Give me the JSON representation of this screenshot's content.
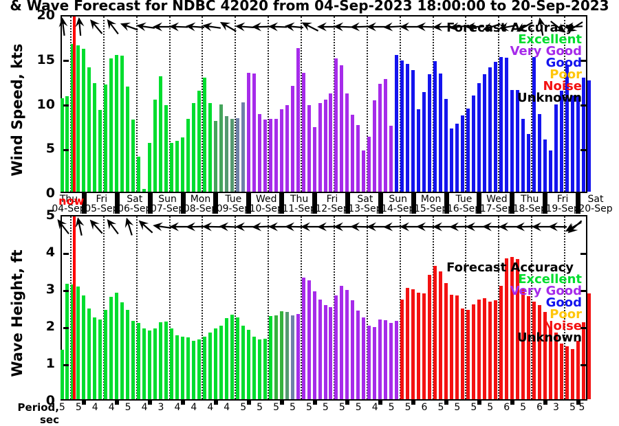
{
  "title": "& Wave Forecast for NDBC 42020 from 04-Sep-2023 18:00:00 to 20-Sep-2023",
  "now_marker": {
    "label": "now",
    "color": "#FF0000"
  },
  "legend": {
    "title": "Forecast Accuracy",
    "items": [
      {
        "label": "Excellent",
        "color": "#00DD2E"
      },
      {
        "label": "Very Good",
        "color": "#A62BEA"
      },
      {
        "label": "Good",
        "color": "#1414EE"
      },
      {
        "label": "Poor",
        "color": "#FFC60A"
      },
      {
        "label": "Noise",
        "color": "#F31111"
      },
      {
        "label": "Unknown",
        "color": "#000000"
      }
    ]
  },
  "x_axis": {
    "day_labels": [
      {
        "day": "Thu",
        "date": "04-Sep"
      },
      {
        "day": "Fri",
        "date": "05-Sep"
      },
      {
        "day": "Sat",
        "date": "06-Sep"
      },
      {
        "day": "Sun",
        "date": "07-Sep"
      },
      {
        "day": "Mon",
        "date": "08-Sep"
      },
      {
        "day": "Tue",
        "date": "09-Sep"
      },
      {
        "day": "Wed",
        "date": "10-Sep"
      },
      {
        "day": "Thu",
        "date": "11-Sep"
      },
      {
        "day": "Fri",
        "date": "12-Sep"
      },
      {
        "day": "Sat",
        "date": "13-Sep"
      },
      {
        "day": "Sun",
        "date": "14-Sep"
      },
      {
        "day": "Mon",
        "date": "15-Sep"
      },
      {
        "day": "Tue",
        "date": "16-Sep"
      },
      {
        "day": "Wed",
        "date": "17-Sep"
      },
      {
        "day": "Thu",
        "date": "18-Sep"
      },
      {
        "day": "Fri",
        "date": "19-Sep"
      },
      {
        "day": "Sat",
        "date": "20-Sep"
      }
    ]
  },
  "period_row": {
    "label": "Period, sec",
    "values": [
      5,
      5,
      4,
      4,
      5,
      4,
      3,
      4,
      4,
      4,
      4,
      5,
      5,
      5,
      5,
      5,
      5,
      5,
      5,
      4,
      5,
      5,
      6,
      5,
      5,
      5,
      5,
      6,
      5,
      6,
      3,
      5,
      5
    ]
  },
  "chart_data": [
    {
      "type": "bar",
      "name": "wind-speed",
      "ylabel": "Wind Speed, kts",
      "ylim": [
        0,
        20
      ],
      "yticks": [
        0,
        5,
        10,
        15,
        20
      ],
      "grid": "vertical-dotted",
      "legend_position": "top-right",
      "values": [
        10.7,
        10.9,
        16.9,
        16.7,
        16.3,
        14.2,
        12.4,
        9.3,
        12.2,
        15.2,
        15.6,
        15.5,
        12.0,
        8.2,
        4.0,
        0.3,
        5.6,
        10.5,
        13.2,
        9.9,
        5.6,
        5.8,
        6.2,
        8.3,
        10.1,
        11.5,
        13.0,
        10.1,
        8.1,
        10.0,
        8.6,
        8.3,
        8.4,
        10.2,
        13.6,
        13.5,
        8.9,
        8.2,
        8.3,
        8.3,
        9.4,
        9.9,
        12.1,
        16.4,
        13.6,
        9.9,
        7.4,
        10.1,
        10.5,
        11.2,
        15.2,
        14.4,
        11.2,
        8.8,
        7.6,
        4.7,
        6.3,
        10.4,
        12.3,
        12.9,
        7.5,
        15.6,
        15.0,
        14.6,
        13.9,
        9.4,
        11.4,
        13.4,
        14.9,
        13.5,
        10.6,
        7.2,
        7.8,
        8.7,
        9.5,
        11.0,
        12.4,
        13.4,
        14.2,
        14.8,
        15.4,
        15.3,
        11.6,
        11.6,
        8.3,
        6.6,
        15.4,
        8.9,
        6.0,
        4.7,
        10.0,
        11.5,
        14.5,
        11.0,
        11.0,
        13.0,
        12.7
      ],
      "color_segments": [
        {
          "until": 28,
          "color": "#00DD2E",
          "accuracy": "Excellent"
        },
        {
          "until": 30,
          "color": "#45A45C",
          "accuracy": "transition"
        },
        {
          "until": 32,
          "color": "#54996F",
          "accuracy": "transition"
        },
        {
          "until": 34,
          "color": "#6F80A8",
          "accuracy": "transition"
        },
        {
          "until": 61,
          "color": "#A62BEA",
          "accuracy": "Very Good"
        },
        {
          "until": 97,
          "color": "#1414EE",
          "accuracy": "Good"
        }
      ],
      "arrow_directions_deg": [
        97,
        95,
        130,
        127,
        160,
        172,
        180,
        178,
        176,
        172,
        150,
        176,
        181,
        178,
        175,
        153,
        180,
        178,
        182,
        180,
        183,
        180,
        178,
        182,
        187,
        182,
        198,
        191,
        210,
        100,
        322,
        183,
        212
      ]
    },
    {
      "type": "bar",
      "name": "wave-height",
      "ylabel": "Wave Height, ft",
      "ylim": [
        0,
        5
      ],
      "yticks": [
        0,
        1,
        2,
        3,
        4,
        5
      ],
      "grid": "vertical-dotted",
      "legend_position": "top-right",
      "values": [
        1.35,
        3.15,
        3.13,
        3.08,
        2.84,
        2.48,
        2.23,
        2.19,
        2.45,
        2.81,
        2.92,
        2.65,
        2.45,
        2.15,
        2.09,
        1.94,
        1.88,
        1.94,
        2.1,
        2.12,
        1.93,
        1.75,
        1.72,
        1.69,
        1.6,
        1.63,
        1.72,
        1.82,
        1.94,
        2.02,
        2.21,
        2.31,
        2.23,
        2.01,
        1.89,
        1.72,
        1.63,
        1.66,
        2.27,
        2.29,
        2.4,
        2.38,
        2.29,
        2.33,
        3.33,
        3.26,
        2.95,
        2.73,
        2.57,
        2.51,
        2.83,
        3.11,
        2.98,
        2.7,
        2.43,
        2.23,
        2.01,
        1.98,
        2.19,
        2.16,
        2.08,
        2.15,
        2.73,
        3.04,
        3.01,
        2.92,
        2.89,
        3.4,
        3.64,
        3.49,
        3.17,
        2.85,
        2.83,
        2.48,
        2.45,
        2.6,
        2.73,
        2.76,
        2.67,
        2.7,
        3.11,
        3.86,
        3.89,
        3.83,
        3.01,
        2.82,
        2.67,
        2.57,
        2.38,
        1.98,
        1.82,
        1.53,
        1.44,
        1.38,
        1.6,
        2.1,
        2.9
      ],
      "color_segments": [
        {
          "until": 39,
          "color": "#00DD2E",
          "accuracy": "Excellent"
        },
        {
          "until": 41,
          "color": "#35B23C",
          "accuracy": "transition"
        },
        {
          "until": 42,
          "color": "#54996F",
          "accuracy": "transition"
        },
        {
          "until": 43,
          "color": "#6F80A8",
          "accuracy": "transition"
        },
        {
          "until": 62,
          "color": "#A62BEA",
          "accuracy": "Very Good"
        },
        {
          "until": 97,
          "color": "#F31111",
          "accuracy": "Noise"
        }
      ],
      "arrow_directions_deg": [
        128,
        102,
        132,
        127,
        107,
        138,
        172,
        180,
        181,
        179,
        178,
        180,
        182,
        180,
        179,
        180,
        181,
        180,
        179,
        180,
        182,
        180,
        179,
        180,
        181,
        180,
        179,
        180,
        181,
        180,
        179,
        210,
        222
      ]
    }
  ]
}
